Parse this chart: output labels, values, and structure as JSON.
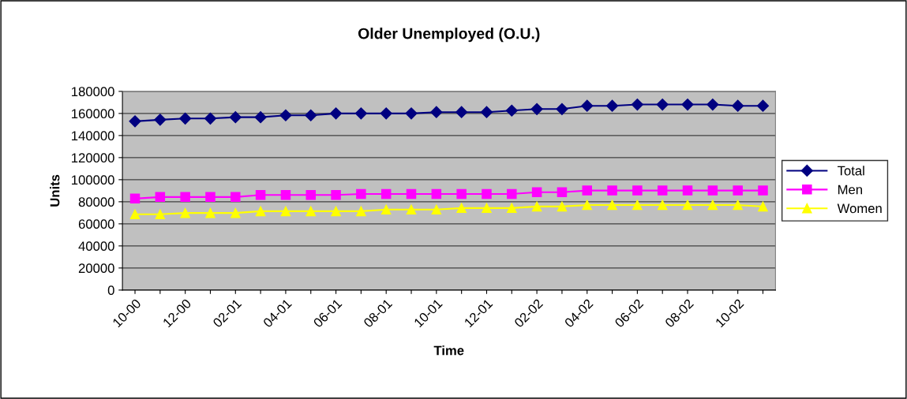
{
  "chart_data": {
    "type": "line",
    "title": "Older Unemployed (O.U.)",
    "xlabel": "Time",
    "ylabel": "Units",
    "categories": [
      "10-00",
      null,
      "12-00",
      null,
      "02-01",
      null,
      "04-01",
      null,
      "06-01",
      null,
      "08-01",
      null,
      "10-01",
      null,
      "12-01",
      null,
      "02-02",
      null,
      "04-02",
      null,
      "06-02",
      null,
      "08-02",
      null,
      "10-02",
      null
    ],
    "series": [
      {
        "name": "Total",
        "color": "#000080",
        "marker": "diamond",
        "values": [
          152900,
          154300,
          155400,
          155400,
          156600,
          156600,
          158300,
          158300,
          160000,
          160000,
          160000,
          160000,
          161200,
          161200,
          161200,
          162600,
          164000,
          164000,
          166900,
          166900,
          168100,
          168100,
          168100,
          168100,
          166900,
          166900
        ]
      },
      {
        "name": "Men",
        "color": "#ff00ff",
        "marker": "square",
        "values": [
          82900,
          84300,
          84300,
          84300,
          84300,
          86200,
          86200,
          86200,
          86200,
          87100,
          87100,
          87100,
          87100,
          87100,
          87100,
          87100,
          88600,
          88600,
          90200,
          90200,
          90200,
          90200,
          90200,
          90200,
          90200,
          90200
        ]
      },
      {
        "name": "Women",
        "color": "#ffff00",
        "marker": "triangle",
        "values": [
          68600,
          68600,
          69800,
          69800,
          69800,
          71400,
          71400,
          71400,
          71400,
          71400,
          72900,
          72900,
          72900,
          74300,
          74300,
          74300,
          75700,
          75700,
          77100,
          77100,
          77100,
          77100,
          77100,
          77100,
          77100,
          75700
        ]
      }
    ],
    "ylim": [
      0,
      180000
    ],
    "yticks": [
      0,
      20000,
      40000,
      60000,
      80000,
      100000,
      120000,
      140000,
      160000,
      180000
    ],
    "grid": "y",
    "legend": "right",
    "line_style": "solid"
  }
}
